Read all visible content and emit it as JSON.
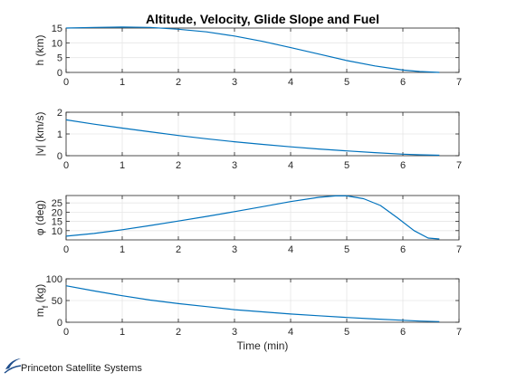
{
  "title": "Altitude, Velocity, Glide Slope and Fuel",
  "footer": {
    "brand": "Princeton Satellite Systems",
    "logo_color": "#1f4e8c"
  },
  "colors": {
    "line": "#0072BD",
    "grid": "#e6e6e6",
    "axis": "#262626"
  },
  "chart_data": [
    {
      "type": "line",
      "ylabel": "h (km)",
      "xlabel": "",
      "xlim": [
        0,
        7
      ],
      "ylim": [
        0,
        15
      ],
      "xticks": [
        0,
        1,
        2,
        3,
        4,
        5,
        6,
        7
      ],
      "yticks": [
        0,
        5,
        10,
        15
      ],
      "grid": true,
      "series": [
        {
          "x": [
            0,
            0.5,
            1,
            1.5,
            2,
            2.5,
            3,
            3.5,
            4,
            4.5,
            5,
            5.5,
            6,
            6.3,
            6.65
          ],
          "values": [
            15.0,
            15.2,
            15.35,
            15.2,
            14.6,
            13.7,
            12.3,
            10.5,
            8.4,
            6.2,
            4.0,
            2.2,
            0.8,
            0.3,
            0.0
          ]
        }
      ]
    },
    {
      "type": "line",
      "ylabel": "|v| (km/s)",
      "xlabel": "",
      "xlim": [
        0,
        7
      ],
      "ylim": [
        0,
        2
      ],
      "xticks": [
        0,
        1,
        2,
        3,
        4,
        5,
        6,
        7
      ],
      "yticks": [
        0,
        1,
        2
      ],
      "grid": true,
      "series": [
        {
          "x": [
            0,
            0.5,
            1,
            1.5,
            2,
            2.5,
            3,
            3.5,
            4,
            4.5,
            5,
            5.5,
            6,
            6.3,
            6.65
          ],
          "values": [
            1.65,
            1.45,
            1.27,
            1.1,
            0.93,
            0.78,
            0.64,
            0.52,
            0.41,
            0.31,
            0.22,
            0.14,
            0.07,
            0.04,
            0.02
          ]
        }
      ]
    },
    {
      "type": "line",
      "ylabel": "φ (deg)",
      "xlabel": "",
      "xlim": [
        0,
        7
      ],
      "ylim": [
        5,
        29
      ],
      "xticks": [
        0,
        1,
        2,
        3,
        4,
        5,
        6,
        7
      ],
      "yticks": [
        10,
        15,
        20,
        25
      ],
      "grid": true,
      "series": [
        {
          "x": [
            0,
            0.5,
            1,
            1.5,
            2,
            2.5,
            3,
            3.5,
            4,
            4.5,
            4.8,
            5.0,
            5.3,
            5.6,
            5.9,
            6.2,
            6.45,
            6.65
          ],
          "values": [
            7,
            8.5,
            10.5,
            12.8,
            15.2,
            17.7,
            20.3,
            23.0,
            25.7,
            28.0,
            28.8,
            28.8,
            27.3,
            23.6,
            17.0,
            10.0,
            6.0,
            5.5
          ]
        }
      ]
    },
    {
      "type": "line",
      "ylabel": "m_f (kg)",
      "xlabel": "Time (min)",
      "xlim": [
        0,
        7
      ],
      "ylim": [
        0,
        100
      ],
      "xticks": [
        0,
        1,
        2,
        3,
        4,
        5,
        6,
        7
      ],
      "yticks": [
        0,
        50,
        100
      ],
      "grid": true,
      "series": [
        {
          "x": [
            0,
            0.5,
            1,
            1.5,
            2,
            2.5,
            3,
            3.5,
            4,
            4.5,
            5,
            5.5,
            6,
            6.3,
            6.65
          ],
          "values": [
            84,
            72,
            61,
            51,
            43,
            36,
            29,
            24,
            19,
            15,
            11,
            7.5,
            4.5,
            2.8,
            1.5
          ]
        }
      ]
    }
  ]
}
